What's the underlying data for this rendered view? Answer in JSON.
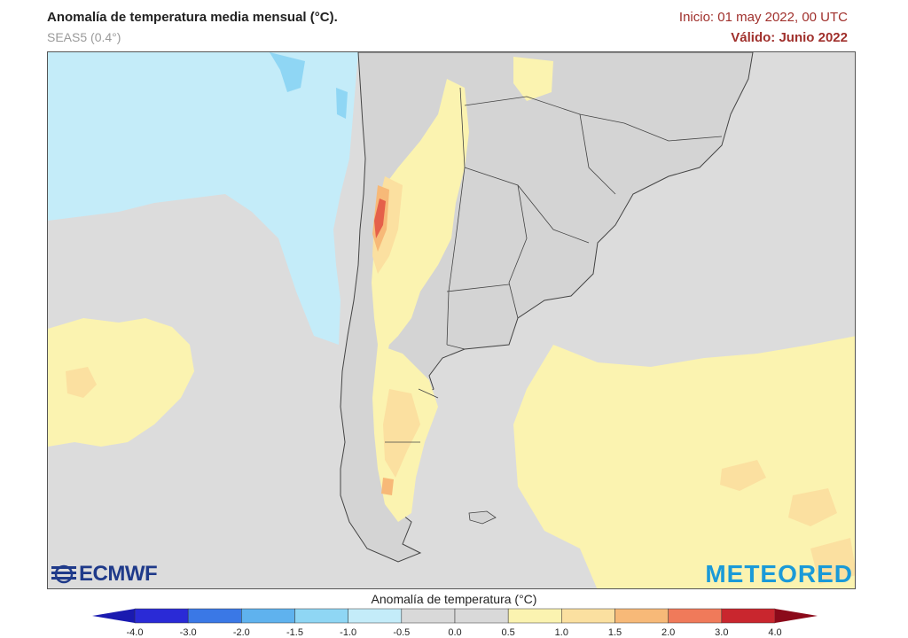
{
  "header": {
    "title": "Anomalía de temperatura media mensual (°C).",
    "model": "SEAS5 (0.4°)",
    "init": "Inicio: 01 may 2022, 00 UTC",
    "valid": "Válido: Junio 2022"
  },
  "logos": {
    "left": "ECMWF",
    "right": "METEORED"
  },
  "legend": {
    "title": "Anomalía de temperatura (°C)",
    "ticks": [
      "-4.0",
      "-3.0",
      "-2.0",
      "-1.5",
      "-1.0",
      "-0.5",
      "0.0",
      "0.5",
      "1.0",
      "1.5",
      "2.0",
      "3.0",
      "4.0"
    ],
    "colors": [
      "#2a2ad6",
      "#3a78e6",
      "#5fb2ee",
      "#8fd6f4",
      "#c4ecf9",
      "#d9d9d9",
      "#d9d9d9",
      "#fbf3b0",
      "#fbe0a0",
      "#f7b978",
      "#f07a5a",
      "#c9262e"
    ],
    "end_low": "#1a1ab0",
    "end_high": "#8b0a1a"
  },
  "map_colors": {
    "ocean_neutral": "#dcdcdc",
    "land_neutral": "#d4d4d4",
    "cold_light": "#c4ecf9",
    "cold_mid": "#8fd6f4",
    "warm_light": "#fbf3b0",
    "warm_mid": "#fbe0a0",
    "warm_high": "#f7b978",
    "warm_red": "#e5604a",
    "border": "#444444"
  }
}
